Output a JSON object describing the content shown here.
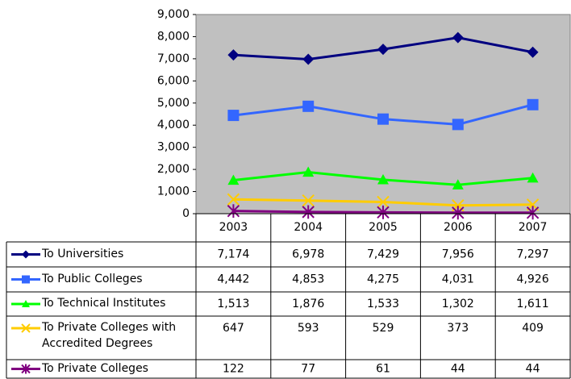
{
  "chart_data": {
    "type": "line",
    "categories": [
      "2003",
      "2004",
      "2005",
      "2006",
      "2007"
    ],
    "ylim": [
      0,
      9000
    ],
    "yticks": [
      0,
      {
        "value": 1000,
        "label": "1,000"
      },
      {
        "value": 2000,
        "label": "2,000"
      },
      {
        "value": 3000,
        "label": "3,000"
      },
      {
        "value": 4000,
        "label": "4,000"
      },
      {
        "value": 5000,
        "label": "5,000"
      },
      {
        "value": 6000,
        "label": "6,000"
      },
      {
        "value": 7000,
        "label": "7,000"
      },
      {
        "value": 8000,
        "label": "8,000"
      },
      {
        "value": 9000,
        "label": "9,000"
      }
    ],
    "grid": false,
    "series": [
      {
        "name": "To Universities",
        "color": "#000080",
        "marker": "diamond",
        "values": [
          7174,
          6978,
          7429,
          7956,
          7297
        ],
        "value_labels": [
          "7,174",
          "6,978",
          "7,429",
          "7,956",
          "7,297"
        ]
      },
      {
        "name": "To Public Colleges",
        "color": "#3366ff",
        "marker": "square",
        "values": [
          4442,
          4853,
          4275,
          4031,
          4926
        ],
        "value_labels": [
          "4,442",
          "4,853",
          "4,275",
          "4,031",
          "4,926"
        ]
      },
      {
        "name": "To Technical Institutes",
        "color": "#00ff00",
        "marker": "triangle",
        "values": [
          1513,
          1876,
          1533,
          1302,
          1611
        ],
        "value_labels": [
          "1,513",
          "1,876",
          "1,533",
          "1,302",
          "1,611"
        ]
      },
      {
        "name": "To Private Colleges with Accredited Degrees",
        "color": "#ffcc00",
        "marker": "x",
        "values": [
          647,
          593,
          529,
          373,
          409
        ]
      },
      {
        "name": "To Private Colleges",
        "color": "#800080",
        "marker": "star",
        "values": [
          122,
          77,
          61,
          44,
          44
        ]
      }
    ]
  }
}
